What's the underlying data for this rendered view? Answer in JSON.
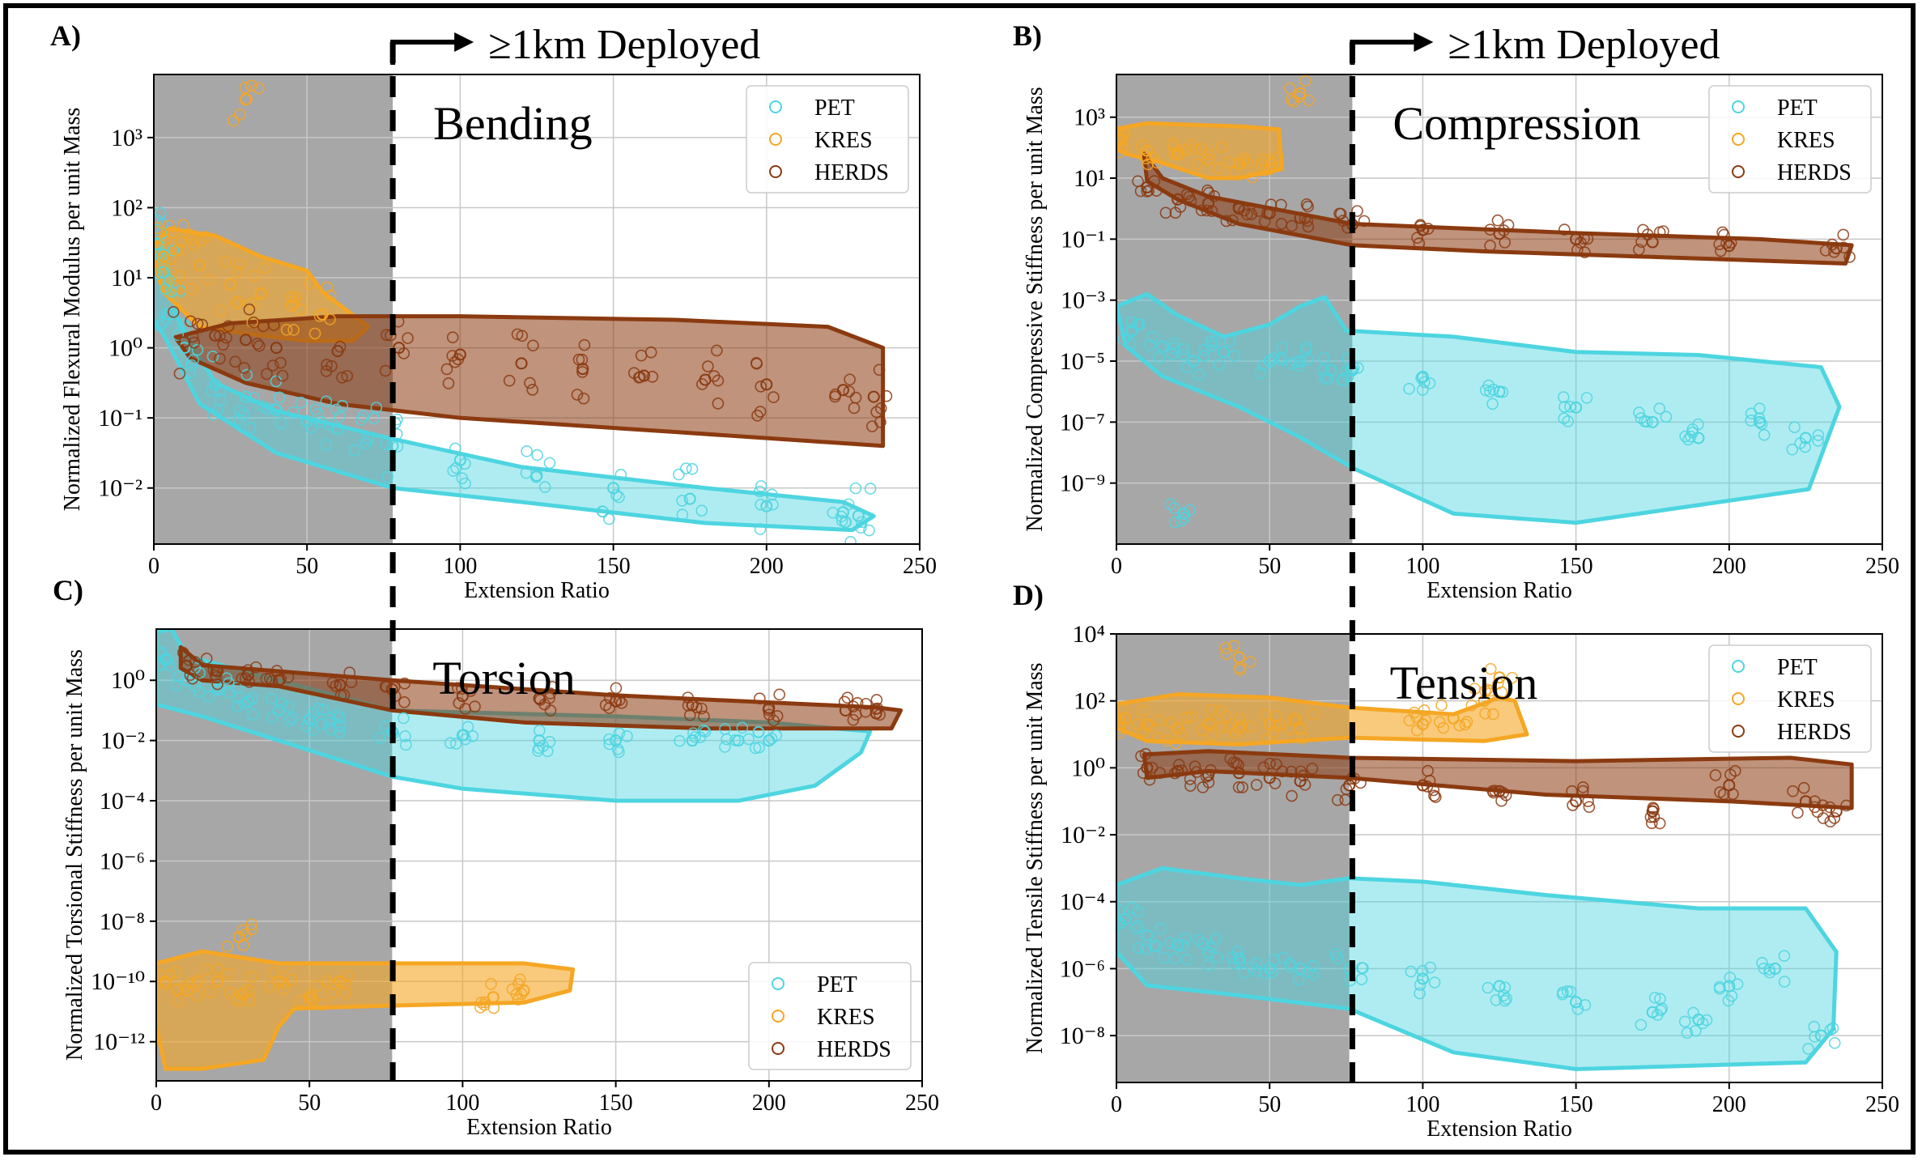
{
  "deploy_label": "≥1km Deployed",
  "colors": {
    "pet": "#4dd5e0",
    "kres": "#f5a623",
    "herds": "#8b3a10",
    "shade": "#8a8a8a",
    "grid": "#c8c8c8"
  },
  "chart_data": [
    {
      "type": "scatter",
      "panel": "A)",
      "title": "Bending",
      "xlabel": "Extension Ratio",
      "ylabel": "Normalized Flexural Modulus per unit Mass",
      "xlim": [
        0,
        250
      ],
      "ylim_log10": [
        -2.8,
        3.9
      ],
      "xticks": [
        0,
        50,
        100,
        150,
        200,
        250
      ],
      "yticks_log10": [
        -2,
        -1,
        0,
        1,
        2,
        3
      ],
      "yscale": "log",
      "shaded_region_x": [
        0,
        78
      ],
      "legend_position": "upper right",
      "series": [
        {
          "name": "PET",
          "x": [
            1,
            3,
            5,
            10,
            20,
            30,
            40,
            50,
            60,
            70,
            78,
            100,
            125,
            150,
            175,
            200,
            225,
            230
          ],
          "y": [
            30,
            12,
            3,
            1,
            0.3,
            0.2,
            0.13,
            0.09,
            0.07,
            0.05,
            0.04,
            0.025,
            0.015,
            0.01,
            0.007,
            0.0055,
            0.0045,
            0.004
          ]
        },
        {
          "name": "KRES",
          "x": [
            3,
            8,
            15,
            25,
            35,
            45,
            55,
            30
          ],
          "y": [
            20,
            25,
            15,
            8,
            6,
            4,
            3,
            3500
          ]
        },
        {
          "name": "HERDS",
          "x": [
            10,
            20,
            30,
            40,
            60,
            80,
            100,
            120,
            140,
            160,
            180,
            200,
            225,
            235
          ],
          "y": [
            1.2,
            1.5,
            1.3,
            1.0,
            0.9,
            1.0,
            0.8,
            0.6,
            0.5,
            0.4,
            0.35,
            0.3,
            0.25,
            0.2
          ]
        }
      ]
    },
    {
      "type": "scatter",
      "panel": "B)",
      "title": "Compression",
      "xlabel": "Extension Ratio",
      "ylabel": "Normalized Compressive Stiffness per unit Mass",
      "xlim": [
        0,
        250
      ],
      "ylim_log10": [
        -11,
        4.4
      ],
      "xticks": [
        0,
        50,
        100,
        150,
        200,
        250
      ],
      "yticks_log10": [
        -9,
        -7,
        -5,
        -3,
        -1,
        1,
        3
      ],
      "ylim": [
        1e-11,
        25000
      ],
      "yscale": "log",
      "shaded_region_x": [
        0,
        77
      ],
      "legend_position": "upper right",
      "series": [
        {
          "name": "PET",
          "x": [
            5,
            15,
            25,
            35,
            50,
            60,
            70,
            77,
            100,
            125,
            150,
            175,
            190,
            210,
            225,
            22
          ],
          "y": [
            0.0001,
            3e-05,
            1e-05,
            2e-05,
            1e-05,
            1e-05,
            5e-06,
            5e-06,
            3e-06,
            1e-06,
            3e-07,
            1e-07,
            3e-08,
            1e-07,
            3e-08,
            1e-10
          ]
        },
        {
          "name": "KRES",
          "x": [
            2,
            10,
            20,
            30,
            40,
            50,
            60
          ],
          "y": [
            100,
            80,
            60,
            40,
            30,
            20,
            6000
          ]
        },
        {
          "name": "HERDS",
          "x": [
            10,
            20,
            30,
            40,
            50,
            60,
            77,
            100,
            125,
            150,
            175,
            200,
            235
          ],
          "y": [
            5,
            2,
            1.5,
            1.0,
            0.7,
            0.5,
            0.3,
            0.2,
            0.15,
            0.1,
            0.08,
            0.06,
            0.05
          ]
        }
      ]
    },
    {
      "type": "scatter",
      "panel": "C)",
      "title": "Torsion",
      "xlabel": "Extension Ratio",
      "ylabel": "Normalized Torsional Stiffness per unit Mass",
      "xlim": [
        0,
        250
      ],
      "ylim_log10": [
        -13.3,
        1.7
      ],
      "xticks": [
        0,
        50,
        100,
        150,
        200,
        250
      ],
      "yticks_log10": [
        -12,
        -10,
        -8,
        -6,
        -4,
        -2,
        0
      ],
      "yscale": "log",
      "shaded_region_x": [
        0,
        77
      ],
      "legend_position": "lower right",
      "series": [
        {
          "name": "PET",
          "x": [
            3,
            10,
            20,
            30,
            40,
            50,
            60,
            77,
            100,
            125,
            150,
            175,
            190,
            200
          ],
          "y": [
            5,
            1,
            0.5,
            0.2,
            0.1,
            0.05,
            0.03,
            0.02,
            0.015,
            0.01,
            0.01,
            0.01,
            0.01,
            0.01
          ]
        },
        {
          "name": "KRES",
          "x": [
            3,
            10,
            20,
            30,
            40,
            50,
            60,
            110,
            120,
            27
          ],
          "y": [
            1e-10,
            5e-11,
            1e-10,
            5e-11,
            1e-10,
            3e-11,
            1e-10,
            3e-11,
            5e-11,
            3e-09
          ]
        },
        {
          "name": "HERDS",
          "x": [
            10,
            20,
            30,
            40,
            60,
            77,
            100,
            125,
            150,
            175,
            200,
            225,
            235
          ],
          "y": [
            3,
            2,
            1.5,
            1.0,
            0.7,
            0.5,
            0.3,
            0.25,
            0.2,
            0.15,
            0.12,
            0.1,
            0.08
          ]
        }
      ]
    },
    {
      "type": "scatter",
      "panel": "D)",
      "title": "Tension",
      "xlabel": "Extension Ratio",
      "ylabel": "Normalized Tensile Stiffness per unit Mass",
      "xlim": [
        0,
        250
      ],
      "ylim_log10": [
        -9.4,
        4.0
      ],
      "xticks": [
        0,
        50,
        100,
        150,
        200,
        250
      ],
      "yticks_log10": [
        -8,
        -6,
        -4,
        -2,
        0,
        2,
        4
      ],
      "yscale": "log",
      "shaded_region_x": [
        0,
        76
      ],
      "legend_position": "upper right",
      "series": [
        {
          "name": "PET",
          "x": [
            3,
            10,
            20,
            30,
            40,
            50,
            60,
            76,
            100,
            125,
            150,
            175,
            190,
            200,
            215,
            230
          ],
          "y": [
            3e-05,
            1e-05,
            5e-06,
            3e-06,
            2e-06,
            1e-06,
            1e-06,
            1e-06,
            5e-07,
            3e-07,
            1e-07,
            5e-08,
            3e-08,
            3e-07,
            1e-06,
            1e-08
          ]
        },
        {
          "name": "KRES",
          "x": [
            3,
            10,
            20,
            30,
            40,
            50,
            60,
            100,
            110,
            120,
            125,
            40
          ],
          "y": [
            30,
            20,
            15,
            20,
            15,
            20,
            15,
            20,
            30,
            100,
            500,
            2000
          ]
        },
        {
          "name": "HERDS",
          "x": [
            10,
            20,
            30,
            40,
            50,
            60,
            76,
            100,
            125,
            150,
            175,
            200,
            225,
            235
          ],
          "y": [
            1.0,
            0.8,
            0.6,
            0.7,
            0.5,
            0.4,
            0.3,
            0.3,
            0.2,
            0.1,
            0.05,
            0.3,
            0.1,
            0.05
          ]
        }
      ]
    }
  ]
}
